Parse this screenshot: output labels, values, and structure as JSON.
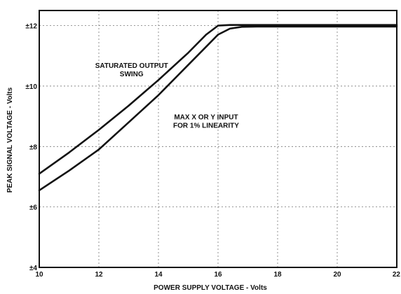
{
  "chart_data": {
    "type": "line",
    "title": "",
    "xlabel": "POWER SUPPLY VOLTAGE - Volts",
    "ylabel": "PEAK SIGNAL VOLTAGE - Volts",
    "xlim": [
      10,
      22
    ],
    "ylim": [
      4,
      12.5
    ],
    "x_ticks": [
      10,
      12,
      14,
      16,
      18,
      20,
      22
    ],
    "x_tick_labels": [
      "10",
      "12",
      "14",
      "16",
      "18",
      "20",
      "22"
    ],
    "y_ticks": [
      4,
      6,
      8,
      10,
      12
    ],
    "y_tick_labels": [
      "±4",
      "±6",
      "±8",
      "±10",
      "±12"
    ],
    "grid": true,
    "series": [
      {
        "name": "SATURATED OUTPUT SWING",
        "x": [
          10,
          11,
          12,
          13,
          14,
          15,
          15.6,
          16,
          16.4,
          17,
          22
        ],
        "y": [
          7.1,
          7.8,
          8.55,
          9.35,
          10.2,
          11.1,
          11.7,
          12.0,
          12.02,
          12.02,
          12.02
        ]
      },
      {
        "name": "MAX X OR Y INPUT FOR 1% LINEARITY",
        "x": [
          10,
          11,
          12,
          13,
          14,
          15,
          15.6,
          16,
          16.4,
          16.8,
          17.3,
          22
        ],
        "y": [
          6.55,
          7.2,
          7.9,
          8.8,
          9.7,
          10.7,
          11.3,
          11.7,
          11.9,
          11.96,
          11.97,
          11.97
        ]
      }
    ],
    "annotations": [
      {
        "lines": [
          "SATURATED OUTPUT",
          "SWING"
        ],
        "x": 13.1,
        "y": 10.6
      },
      {
        "lines": [
          "MAX X OR Y INPUT",
          "FOR 1% LINEARITY"
        ],
        "x": 15.6,
        "y": 8.9
      }
    ]
  }
}
